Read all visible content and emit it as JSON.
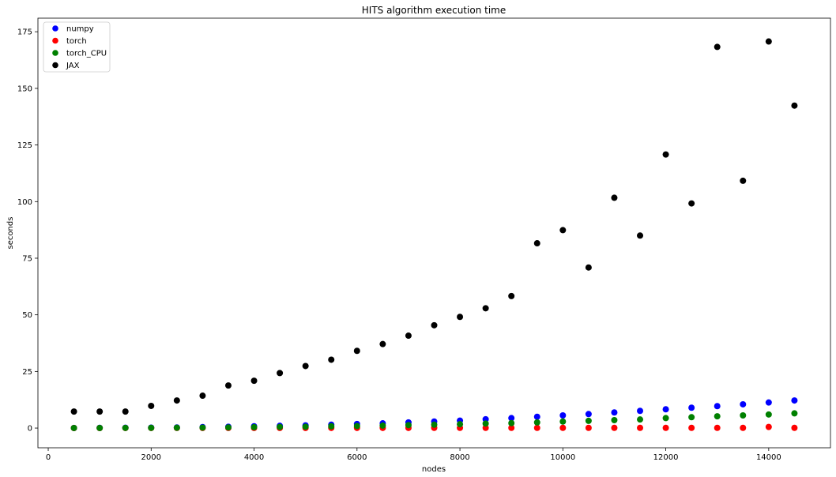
{
  "chart_data": {
    "type": "scatter",
    "title": "HITS algorithm execution time",
    "xlabel": "nodes",
    "ylabel": "seconds",
    "xlim": [
      -200,
      15200
    ],
    "ylim": [
      -8.7,
      181
    ],
    "xticks": [
      0,
      2000,
      4000,
      6000,
      8000,
      10000,
      12000,
      14000
    ],
    "yticks": [
      0,
      25,
      50,
      75,
      100,
      125,
      150,
      175
    ],
    "grid": false,
    "legend_position": "top-left",
    "x": [
      500,
      1000,
      1500,
      2000,
      2500,
      3000,
      3500,
      4000,
      4500,
      5000,
      5500,
      6000,
      6500,
      7000,
      7500,
      8000,
      8500,
      9000,
      9500,
      10000,
      10500,
      11000,
      11500,
      12000,
      12500,
      13000,
      13500,
      14000,
      14500
    ],
    "series": [
      {
        "name": "numpy",
        "color": "#0000ff",
        "values": [
          0.05,
          0.1,
          0.15,
          0.2,
          0.3,
          0.45,
          0.6,
          0.8,
          1.0,
          1.2,
          1.5,
          1.8,
          2.1,
          2.5,
          2.9,
          3.3,
          3.9,
          4.4,
          5.0,
          5.6,
          6.2,
          6.9,
          7.6,
          8.3,
          9.0,
          9.7,
          10.5,
          11.3,
          12.2
        ]
      },
      {
        "name": "torch",
        "color": "#ff0000",
        "values": [
          0.02,
          0.02,
          0.03,
          0.03,
          0.04,
          0.04,
          0.05,
          0.05,
          0.06,
          0.06,
          0.07,
          0.07,
          0.08,
          0.08,
          0.09,
          0.09,
          0.1,
          0.1,
          0.1,
          0.1,
          0.1,
          0.1,
          0.1,
          0.1,
          0.1,
          0.1,
          0.1,
          0.5,
          0.1
        ]
      },
      {
        "name": "torch_CPU",
        "color": "#008000",
        "values": [
          0.03,
          0.05,
          0.08,
          0.1,
          0.15,
          0.2,
          0.3,
          0.4,
          0.5,
          0.6,
          0.8,
          0.9,
          1.1,
          1.3,
          1.5,
          1.7,
          2.0,
          2.2,
          2.5,
          2.9,
          3.2,
          3.5,
          3.8,
          4.4,
          4.8,
          5.2,
          5.6,
          6.0,
          6.5
        ]
      },
      {
        "name": "JAX",
        "color": "#000000",
        "values": [
          7.3,
          7.3,
          7.3,
          9.8,
          12.2,
          14.3,
          18.8,
          20.9,
          24.3,
          27.4,
          30.2,
          34.1,
          37.1,
          40.8,
          45.4,
          49.1,
          52.9,
          58.3,
          81.6,
          87.4,
          70.9,
          101.7,
          85.0,
          120.8,
          99.2,
          168.3,
          109.2,
          170.7,
          142.4
        ]
      }
    ]
  }
}
